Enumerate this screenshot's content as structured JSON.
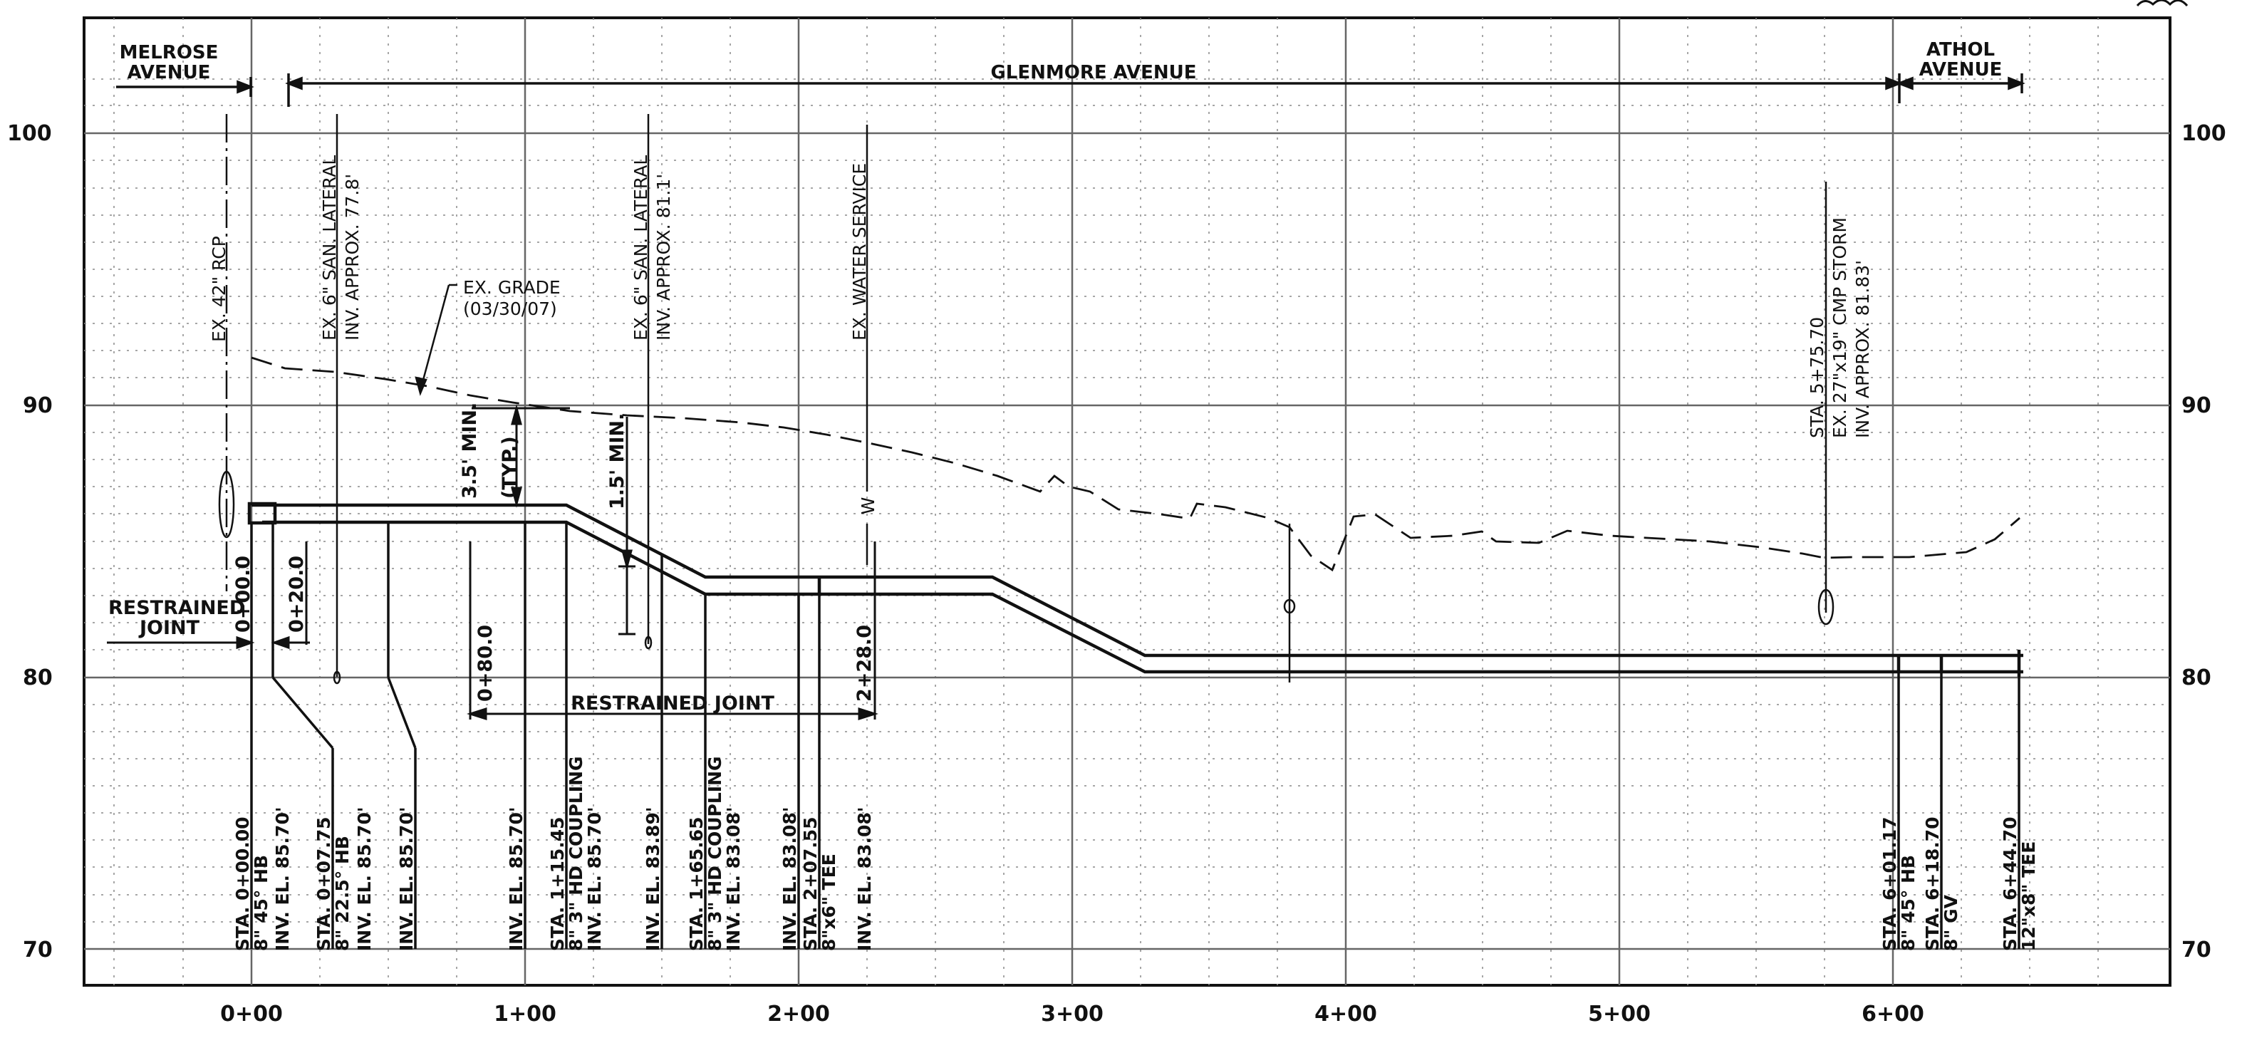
{
  "streets": {
    "melrose": [
      "MELROSE",
      "AVENUE"
    ],
    "glenmore": "GLENMORE AVENUE",
    "athol": [
      "ATHOL",
      "AVENUE"
    ]
  },
  "axis": {
    "x_labels": [
      "0+00",
      "1+00",
      "2+00",
      "3+00",
      "4+00",
      "5+00",
      "6+00"
    ],
    "y_labels": [
      "100",
      "90",
      "80",
      "70"
    ]
  },
  "notes": {
    "ex_rcp": "EX. 42\" RCP",
    "ex_grade": [
      "EX. GRADE",
      "(03/30/07)"
    ],
    "lat1": [
      "EX. 6\" SAN. LATERAL",
      "INV. APPROX. 77.8'"
    ],
    "lat2": [
      "EX. 6\" SAN. LATERAL",
      "INV. APPROX. 81.1'"
    ],
    "water": "EX. WATER SERVICE",
    "water_mark": "W",
    "storm": [
      "STA. 5+75.70",
      "EX. 27\"x19\" CMP STORM",
      "INV. APPROX. 81.83'"
    ]
  },
  "dims": {
    "cover_a": [
      "3.5' MIN.",
      "(TYP.)"
    ],
    "cover_b": "1.5' MIN.",
    "restrained_joint": "RESTRAINED JOINT",
    "rj_left": [
      "RESTRAINED",
      "JOINT"
    ],
    "sta_0": "0+00.0",
    "sta_20": "0+20.0",
    "sta_80": "0+80.0",
    "sta_228": "2+28.0"
  },
  "callouts": [
    {
      "id": "c1",
      "lines": [
        "STA. 0+00.00",
        "8\" 45° HB"
      ]
    },
    {
      "id": "c2",
      "lines": [
        "INV. EL. 85.70'"
      ]
    },
    {
      "id": "c3",
      "lines": [
        "STA. 0+07.75",
        "8\" 22.5° HB"
      ]
    },
    {
      "id": "c4",
      "lines": [
        "INV. EL. 85.70'"
      ]
    },
    {
      "id": "c5",
      "lines": [
        "INV. EL. 85.70'"
      ]
    },
    {
      "id": "c6",
      "lines": [
        "INV. EL. 85.70'"
      ]
    },
    {
      "id": "c7",
      "lines": [
        "STA. 1+15.45",
        "8\" 3\" HD COUPLING",
        "INV. EL. 85.70'"
      ]
    },
    {
      "id": "c8",
      "lines": [
        "INV. EL. 83.89'"
      ]
    },
    {
      "id": "c9",
      "lines": [
        "STA. 1+65.65",
        "8\" 3\" HD COUPLING",
        "INV. EL. 83.08'"
      ]
    },
    {
      "id": "c10",
      "lines": [
        "INV. EL. 83.08'"
      ]
    },
    {
      "id": "c11",
      "lines": [
        "STA. 2+07.55",
        "8\"x6\" TEE",
        "INV. EL. 83.08'"
      ]
    },
    {
      "id": "c12",
      "lines": [
        "STA. 6+01.17",
        "8\" 45° HB"
      ]
    },
    {
      "id": "c13",
      "lines": [
        "STA. 6+18.70",
        "8\" GV"
      ]
    },
    {
      "id": "c14",
      "lines": [
        "STA. 6+44.70",
        "12\"x8\" TEE"
      ]
    }
  ],
  "colors": {
    "ink": "#111111",
    "grid": "#777777",
    "paper": "#ffffff"
  }
}
